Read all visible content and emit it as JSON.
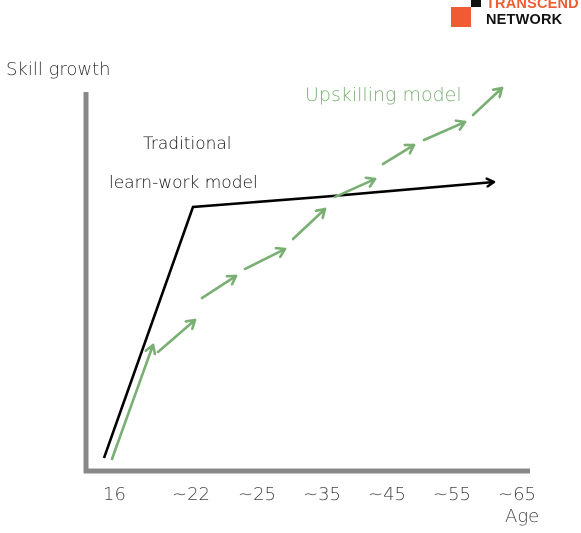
{
  "logo": {
    "line1": "TRANSCEND",
    "line2": "NETWORK",
    "accent_color": "#ef5b32",
    "dark_color": "#111111"
  },
  "diagram": {
    "y_axis_label": "Skill growth",
    "x_axis_label": "Age",
    "x_ticks": [
      "16",
      "~22",
      "~25",
      "~35",
      "~45",
      "~55",
      "~65"
    ],
    "traditional_label_line1": "Traditional",
    "traditional_label_line2": "learn-work model",
    "upskilling_label": "Upskilling model",
    "traditional_color": "#000000",
    "upskilling_color": "#7aaf74",
    "axis_color": "#888888",
    "tick_color": "#555555"
  }
}
